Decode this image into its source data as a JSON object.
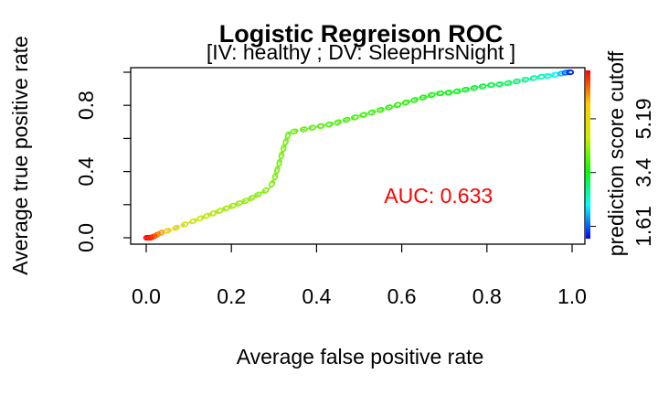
{
  "chart_data": {
    "type": "line",
    "title": "Logistic Regreison ROC",
    "subtitle": "[IV:  healthy ; DV: SleepHrsNight ]",
    "xlabel": "Average false positive rate",
    "ylabel": "Average true positive rate",
    "xlim": [
      0,
      1
    ],
    "ylim": [
      0,
      1
    ],
    "x_ticks": [
      "0.0",
      "0.2",
      "0.4",
      "0.6",
      "0.8",
      "1.0"
    ],
    "y_ticks": [
      "0.0",
      "0.4",
      "0.8"
    ],
    "grid": false,
    "annotation": {
      "label": "AUC:  0.633",
      "x": 0.58,
      "y": 0.21,
      "color": "#ff0000"
    },
    "colorbar": {
      "label": "prediction score cutoff",
      "ticks": [
        "1.61",
        "3.4",
        "5.19"
      ],
      "tick_values": [
        1.61,
        3.4,
        5.19
      ],
      "range": [
        1.2,
        6.8
      ]
    },
    "series": [
      {
        "x": [
          0.0,
          0.005,
          0.01,
          0.015,
          0.02,
          0.03,
          0.04,
          0.06,
          0.08,
          0.1,
          0.12,
          0.15,
          0.18,
          0.21,
          0.24,
          0.27,
          0.29,
          0.3,
          0.31,
          0.32,
          0.33,
          0.335,
          0.36,
          0.4,
          0.44,
          0.48,
          0.52,
          0.56,
          0.6,
          0.64,
          0.68,
          0.72,
          0.76,
          0.8,
          0.84,
          0.88,
          0.92,
          0.95,
          0.97,
          0.98,
          0.99,
          1.0
        ],
        "y": [
          0.0,
          0.0,
          0.0,
          0.005,
          0.01,
          0.025,
          0.035,
          0.05,
          0.07,
          0.09,
          0.11,
          0.14,
          0.17,
          0.2,
          0.23,
          0.27,
          0.3,
          0.35,
          0.43,
          0.52,
          0.6,
          0.635,
          0.65,
          0.67,
          0.69,
          0.72,
          0.75,
          0.78,
          0.81,
          0.84,
          0.87,
          0.88,
          0.9,
          0.92,
          0.93,
          0.95,
          0.97,
          0.98,
          0.99,
          0.995,
          1.0,
          1.0
        ],
        "cutoff": [
          6.8,
          6.75,
          6.7,
          6.6,
          6.4,
          6.1,
          5.8,
          5.4,
          5.0,
          4.8,
          4.6,
          4.45,
          4.35,
          4.28,
          4.22,
          4.18,
          4.15,
          4.12,
          4.1,
          4.08,
          4.05,
          4.0,
          3.95,
          3.9,
          3.85,
          3.8,
          3.75,
          3.7,
          3.62,
          3.55,
          3.48,
          3.4,
          3.3,
          3.2,
          3.05,
          2.9,
          2.7,
          2.45,
          2.2,
          1.9,
          1.5,
          1.2
        ]
      }
    ]
  }
}
